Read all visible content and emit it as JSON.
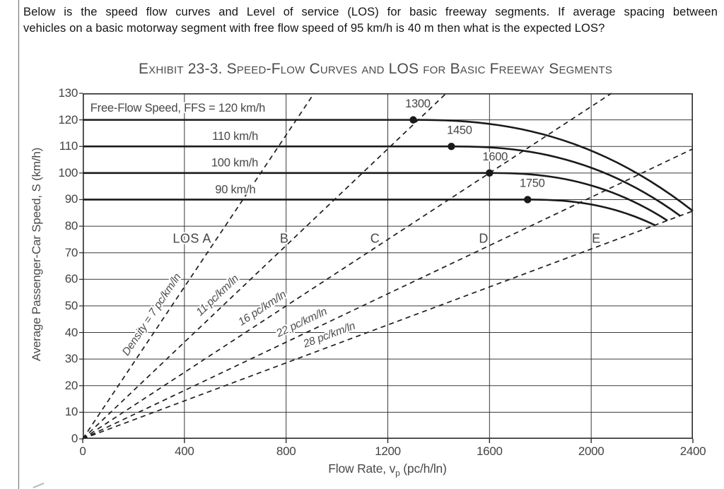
{
  "page": {
    "question_line1": "Below is the speed flow curves and Level of service (LOS) for basic freeway segments. If average spacing between",
    "question_line2": "vehicles on a basic motorway segment with free flow speed of 95 km/h is 40 m then what is the expected LOS?"
  },
  "chart_data": {
    "type": "line",
    "title": "Exhibit 23-3.  Speed-Flow Curves and LOS for Basic Freeway Segments",
    "xlabel_prefix": "Flow Rate, v",
    "xlabel_sub": "p",
    "xlabel_suffix": " (pc/h/ln)",
    "ylabel": "Average Passenger-Car Speed, S (km/h)",
    "xlim": [
      0,
      2400
    ],
    "ylim": [
      0,
      130
    ],
    "x_ticks": [
      0,
      400,
      800,
      1200,
      1600,
      2000,
      2400
    ],
    "y_ticks": [
      0,
      10,
      20,
      30,
      40,
      50,
      60,
      70,
      80,
      90,
      100,
      110,
      120,
      130
    ],
    "grid": true,
    "legend": "none",
    "curve_exponent": 2.4,
    "speed_flow_curves": [
      {
        "name": "FFS 120 km/h",
        "ffs": 120,
        "breakpoint": 1300,
        "capacity": 2400,
        "speed_at_capacity": 85.7
      },
      {
        "name": "FFS 110 km/h",
        "ffs": 110,
        "breakpoint": 1450,
        "capacity": 2350,
        "speed_at_capacity": 83.9
      },
      {
        "name": "FFS 100 km/h",
        "ffs": 100,
        "breakpoint": 1600,
        "capacity": 2300,
        "speed_at_capacity": 82.1
      },
      {
        "name": "FFS 90 km/h",
        "ffs": 90,
        "breakpoint": 1750,
        "capacity": 2250,
        "speed_at_capacity": 80.4
      }
    ],
    "ffs_labels": [
      {
        "text": "Free-Flow Speed, FFS = 120 km/h",
        "v": 30,
        "s": 124.6,
        "anchor": "start"
      },
      {
        "text": "110 km/h",
        "v": 690,
        "s": 113.9,
        "anchor": "end"
      },
      {
        "text": "100 km/h",
        "v": 690,
        "s": 103.9,
        "anchor": "end"
      },
      {
        "text": "90 km/h",
        "v": 680,
        "s": 93.9,
        "anchor": "end"
      }
    ],
    "breakpoint_markers": [
      {
        "label": "1300",
        "v": 1300,
        "s": 120,
        "label_v": 1318,
        "label_s": 126.2
      },
      {
        "label": "1450",
        "v": 1450,
        "s": 110,
        "label_v": 1482,
        "label_s": 116.2
      },
      {
        "label": "1600",
        "v": 1600,
        "s": 100,
        "label_v": 1622,
        "label_s": 106.2
      },
      {
        "label": "1750",
        "v": 1750,
        "s": 90,
        "label_v": 1768,
        "label_s": 96.2
      }
    ],
    "density_lines": [
      {
        "density": 7,
        "label": "Density = 7 pc/km/ln",
        "label_v": 310,
        "offset": 12
      },
      {
        "density": 11,
        "label": "11 pc/km/ln",
        "label_v": 560,
        "offset": 11
      },
      {
        "density": 16,
        "label": "16 pc/km/ln",
        "label_v": 730,
        "offset": 11
      },
      {
        "density": 22,
        "label": "22 pc/km/ln",
        "label_v": 880,
        "offset": 11
      },
      {
        "density": 28,
        "label": "28 pc/km/ln",
        "label_v": 985,
        "offset": 11
      }
    ],
    "los_labels": [
      {
        "text": "LOS A",
        "v": 430,
        "s": 75.4
      },
      {
        "text": "B",
        "v": 793,
        "s": 75.4
      },
      {
        "text": "C",
        "v": 1150,
        "s": 75.4
      },
      {
        "text": "D",
        "v": 1577,
        "s": 75.4
      },
      {
        "text": "E",
        "v": 2020,
        "s": 75.4
      }
    ],
    "colors": {
      "curve": "#1a1a1a",
      "density_line": "#1d1d1d",
      "grid": "#3a3a3a",
      "border": "#2a2a2a",
      "label_text": "#474747",
      "tick_text": "#434343",
      "question_text": "#141414",
      "background": "#ffffff"
    }
  }
}
